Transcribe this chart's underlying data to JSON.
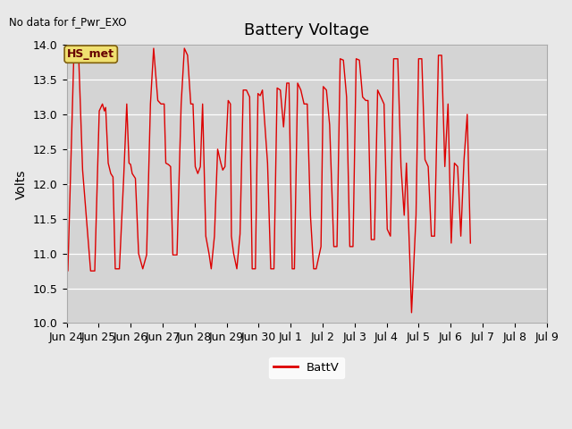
{
  "title": "Battery Voltage",
  "note": "No data for f_Pwr_EXO",
  "ylabel": "Volts",
  "legend_label": "BattV",
  "line_color": "#dd0000",
  "fig_bg_color": "#e8e8e8",
  "plot_bg_color": "#d4d4d4",
  "ylim": [
    10.0,
    14.0
  ],
  "yticks": [
    10.0,
    10.5,
    11.0,
    11.5,
    12.0,
    12.5,
    13.0,
    13.5,
    14.0
  ],
  "hs_met_label": "HS_met",
  "hs_met_bg": "#f0e070",
  "hs_met_border": "#806010",
  "title_fontsize": 13,
  "axis_fontsize": 10,
  "tick_fontsize": 9,
  "x_ticks_labels": [
    "Jun 24",
    "Jun 25",
    "Jun 26",
    "Jun 27",
    "Jun 28",
    "Jun 29",
    "Jun 30",
    "Jul 1",
    "Jul 2",
    "Jul 3",
    "Jul 4",
    "Jul 5",
    "Jul 6",
    "Jul 7",
    "Jul 8",
    "Jul 9"
  ],
  "keypoints": [
    [
      0.0,
      11.35
    ],
    [
      0.04,
      10.75
    ],
    [
      0.22,
      13.75
    ],
    [
      0.38,
      13.8
    ],
    [
      0.5,
      12.2
    ],
    [
      0.62,
      11.5
    ],
    [
      0.75,
      10.75
    ],
    [
      0.88,
      10.75
    ],
    [
      1.02,
      13.05
    ],
    [
      1.12,
      13.15
    ],
    [
      1.18,
      13.05
    ],
    [
      1.22,
      13.1
    ],
    [
      1.3,
      12.3
    ],
    [
      1.38,
      12.15
    ],
    [
      1.45,
      12.1
    ],
    [
      1.52,
      10.78
    ],
    [
      1.65,
      10.78
    ],
    [
      1.78,
      12.05
    ],
    [
      1.88,
      13.15
    ],
    [
      1.95,
      12.3
    ],
    [
      2.0,
      12.28
    ],
    [
      2.05,
      12.15
    ],
    [
      2.15,
      12.08
    ],
    [
      2.25,
      11.0
    ],
    [
      2.38,
      10.78
    ],
    [
      2.5,
      10.98
    ],
    [
      2.62,
      13.15
    ],
    [
      2.72,
      13.95
    ],
    [
      2.85,
      13.2
    ],
    [
      2.95,
      13.15
    ],
    [
      3.05,
      13.15
    ],
    [
      3.1,
      12.3
    ],
    [
      3.18,
      12.28
    ],
    [
      3.25,
      12.25
    ],
    [
      3.32,
      10.98
    ],
    [
      3.45,
      10.98
    ],
    [
      3.58,
      13.15
    ],
    [
      3.68,
      13.95
    ],
    [
      3.78,
      13.85
    ],
    [
      3.88,
      13.15
    ],
    [
      3.95,
      13.15
    ],
    [
      4.02,
      12.25
    ],
    [
      4.1,
      12.15
    ],
    [
      4.18,
      12.25
    ],
    [
      4.25,
      13.15
    ],
    [
      4.35,
      11.25
    ],
    [
      4.45,
      11.0
    ],
    [
      4.52,
      10.78
    ],
    [
      4.62,
      11.25
    ],
    [
      4.72,
      12.5
    ],
    [
      4.82,
      12.3
    ],
    [
      4.88,
      12.2
    ],
    [
      4.95,
      12.25
    ],
    [
      5.05,
      13.2
    ],
    [
      5.12,
      13.15
    ],
    [
      5.15,
      11.25
    ],
    [
      5.22,
      11.0
    ],
    [
      5.32,
      10.78
    ],
    [
      5.42,
      11.28
    ],
    [
      5.52,
      13.35
    ],
    [
      5.62,
      13.35
    ],
    [
      5.72,
      13.25
    ],
    [
      5.8,
      10.78
    ],
    [
      5.9,
      10.78
    ],
    [
      5.98,
      13.3
    ],
    [
      6.05,
      13.27
    ],
    [
      6.12,
      13.35
    ],
    [
      6.2,
      12.82
    ],
    [
      6.28,
      12.3
    ],
    [
      6.38,
      10.78
    ],
    [
      6.48,
      10.78
    ],
    [
      6.58,
      13.38
    ],
    [
      6.68,
      13.35
    ],
    [
      6.78,
      12.82
    ],
    [
      6.88,
      13.45
    ],
    [
      6.95,
      13.45
    ],
    [
      7.05,
      10.78
    ],
    [
      7.12,
      10.78
    ],
    [
      7.22,
      13.45
    ],
    [
      7.32,
      13.35
    ],
    [
      7.42,
      13.15
    ],
    [
      7.52,
      13.15
    ],
    [
      7.62,
      11.55
    ],
    [
      7.72,
      10.78
    ],
    [
      7.8,
      10.78
    ],
    [
      7.88,
      10.95
    ],
    [
      7.95,
      11.1
    ],
    [
      8.02,
      13.4
    ],
    [
      8.12,
      13.35
    ],
    [
      8.22,
      12.85
    ],
    [
      8.35,
      11.1
    ],
    [
      8.45,
      11.1
    ],
    [
      8.55,
      13.8
    ],
    [
      8.65,
      13.78
    ],
    [
      8.75,
      13.25
    ],
    [
      8.85,
      11.1
    ],
    [
      8.95,
      11.1
    ],
    [
      9.05,
      13.8
    ],
    [
      9.15,
      13.78
    ],
    [
      9.25,
      13.25
    ],
    [
      9.35,
      13.2
    ],
    [
      9.42,
      13.2
    ],
    [
      9.52,
      11.2
    ],
    [
      9.62,
      11.2
    ],
    [
      9.72,
      13.35
    ],
    [
      9.82,
      13.25
    ],
    [
      9.92,
      13.15
    ],
    [
      10.02,
      11.35
    ],
    [
      10.12,
      11.25
    ],
    [
      10.22,
      13.8
    ],
    [
      10.35,
      13.8
    ],
    [
      10.45,
      12.25
    ],
    [
      10.55,
      11.55
    ],
    [
      10.62,
      12.3
    ],
    [
      10.72,
      11.0
    ],
    [
      10.78,
      10.15
    ],
    [
      10.92,
      11.55
    ],
    [
      11.0,
      13.8
    ],
    [
      11.1,
      13.8
    ],
    [
      11.2,
      12.35
    ],
    [
      11.3,
      12.25
    ],
    [
      11.4,
      11.25
    ],
    [
      11.5,
      11.25
    ],
    [
      11.62,
      13.85
    ],
    [
      11.72,
      13.85
    ],
    [
      11.82,
      12.25
    ],
    [
      11.92,
      13.15
    ],
    [
      12.02,
      11.15
    ],
    [
      12.12,
      12.3
    ],
    [
      12.22,
      12.25
    ],
    [
      12.32,
      11.25
    ],
    [
      12.42,
      12.35
    ],
    [
      12.52,
      13.0
    ],
    [
      12.62,
      11.15
    ]
  ]
}
